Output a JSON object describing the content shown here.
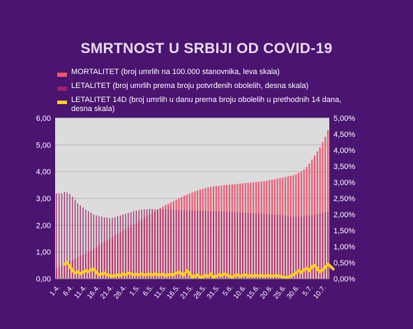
{
  "chart_data": {
    "type": "bar",
    "title": "SMRTNOST U SRBIJI OD COVID-19",
    "legend": [
      {
        "key": "mortalitet",
        "label": "MORTALITET (broj umrlih na 100.000 stanovnika, leva skala)",
        "color": "#f0556e"
      },
      {
        "key": "letalitet",
        "label": "LETALITET (broj umrlih prema broju potvrđenih obolelih, desna skala)",
        "color": "#a0226a"
      },
      {
        "key": "letalitet14",
        "label": "LETALITET 14D (broj umrlih u danu prema broju obolelih u prethodnih 14 dana, desna skala)",
        "color": "#ffd21a"
      }
    ],
    "y_left": {
      "ticks": [
        "0,00",
        "1,00",
        "2,00",
        "3,00",
        "4,00",
        "5,00",
        "6,00"
      ],
      "min": 0,
      "max": 6
    },
    "y_right": {
      "ticks": [
        "0,00%",
        "0,50%",
        "1,00%",
        "1,50%",
        "2,00%",
        "2,50%",
        "3,00%",
        "3,50%",
        "4,00%",
        "4,50%",
        "5,00%"
      ],
      "min": 0,
      "max": 5
    },
    "x_tick_labels": [
      "1.4.",
      "6.4.",
      "11.4.",
      "16.4.",
      "21.4.",
      "26.4.",
      "1.5.",
      "6.5.",
      "11.5.",
      "16.5.",
      "21.5.",
      "26.5.",
      "31.5.",
      "5.6.",
      "10.6.",
      "15.6.",
      "20.6.",
      "25.6.",
      "30.6.",
      "5.7.",
      "10.7."
    ],
    "day_count": 103,
    "series": [
      {
        "name": "MORTALITET (broj umrlih na 100.000 stanovnika, leva skala)",
        "axis": "left",
        "values": [
          0.38,
          0.43,
          0.48,
          0.55,
          0.6,
          0.65,
          0.7,
          0.75,
          0.8,
          0.85,
          0.9,
          0.95,
          1.0,
          1.06,
          1.12,
          1.18,
          1.25,
          1.31,
          1.37,
          1.43,
          1.49,
          1.55,
          1.61,
          1.67,
          1.73,
          1.79,
          1.85,
          1.91,
          1.97,
          2.03,
          2.09,
          2.15,
          2.21,
          2.27,
          2.33,
          2.39,
          2.45,
          2.51,
          2.57,
          2.63,
          2.69,
          2.75,
          2.8,
          2.85,
          2.9,
          2.95,
          3.0,
          3.05,
          3.1,
          3.14,
          3.18,
          3.22,
          3.26,
          3.3,
          3.33,
          3.36,
          3.39,
          3.41,
          3.43,
          3.45,
          3.46,
          3.47,
          3.48,
          3.49,
          3.5,
          3.51,
          3.52,
          3.53,
          3.54,
          3.55,
          3.56,
          3.57,
          3.58,
          3.59,
          3.6,
          3.61,
          3.62,
          3.63,
          3.64,
          3.66,
          3.68,
          3.7,
          3.72,
          3.74,
          3.76,
          3.78,
          3.8,
          3.82,
          3.84,
          3.86,
          3.9,
          3.95,
          4.0,
          4.08,
          4.18,
          4.3,
          4.45,
          4.6,
          4.75,
          4.9,
          5.1,
          5.3,
          5.55
        ]
      },
      {
        "name": "LETALITET (broj umrlih prema broju potvrđenih obolelih, desna skala)",
        "axis": "right",
        "values": [
          2.66,
          2.66,
          2.66,
          2.7,
          2.68,
          2.63,
          2.55,
          2.45,
          2.35,
          2.28,
          2.22,
          2.15,
          2.1,
          2.05,
          2.0,
          1.97,
          1.95,
          1.93,
          1.91,
          1.9,
          1.88,
          1.9,
          1.92,
          1.95,
          1.97,
          2.0,
          2.02,
          2.05,
          2.07,
          2.1,
          2.12,
          2.14,
          2.15,
          2.16,
          2.16,
          2.17,
          2.17,
          2.16,
          2.16,
          2.16,
          2.15,
          2.15,
          2.15,
          2.14,
          2.14,
          2.14,
          2.13,
          2.13,
          2.13,
          2.13,
          2.12,
          2.12,
          2.12,
          2.12,
          2.11,
          2.11,
          2.11,
          2.11,
          2.1,
          2.1,
          2.1,
          2.1,
          2.09,
          2.09,
          2.09,
          2.08,
          2.08,
          2.07,
          2.07,
          2.06,
          2.06,
          2.05,
          2.05,
          2.04,
          2.04,
          2.03,
          2.03,
          2.02,
          2.02,
          2.01,
          2.01,
          2.0,
          2.0,
          1.99,
          1.98,
          1.97,
          1.96,
          1.95,
          1.94,
          1.93,
          1.93,
          1.93,
          1.94,
          1.95,
          1.96,
          1.97,
          1.98,
          1.99,
          2.0,
          2.02,
          2.04,
          2.06,
          2.08
        ]
      },
      {
        "name": "LETALITET 14D (broj umrlih u danu prema broju obolelih u prethodnih 14 dana, desna skala)",
        "axis": "right",
        "values": [
          null,
          null,
          null,
          0.45,
          0.5,
          0.38,
          0.25,
          0.18,
          0.22,
          0.15,
          0.2,
          0.25,
          0.22,
          0.28,
          0.3,
          0.2,
          0.12,
          0.15,
          0.18,
          0.12,
          0.1,
          0.08,
          0.1,
          0.12,
          0.1,
          0.15,
          0.12,
          0.18,
          0.15,
          0.12,
          0.14,
          0.12,
          0.15,
          0.12,
          0.13,
          0.14,
          0.12,
          0.15,
          0.13,
          0.12,
          0.14,
          0.1,
          0.12,
          0.13,
          0.12,
          0.18,
          0.2,
          0.15,
          0.12,
          0.25,
          0.18,
          0.05,
          0.08,
          0.12,
          0.04,
          0.06,
          0.1,
          0.08,
          0.15,
          0.05,
          0.08,
          0.12,
          0.1,
          0.15,
          0.12,
          0.08,
          0.05,
          0.1,
          0.12,
          0.08,
          0.1,
          0.12,
          0.08,
          0.1,
          0.09,
          0.1,
          0.09,
          0.1,
          0.08,
          0.1,
          0.09,
          0.08,
          0.1,
          0.09,
          0.08,
          0.05,
          0.03,
          0.05,
          0.08,
          0.12,
          0.18,
          0.25,
          0.2,
          0.28,
          0.32,
          0.25,
          0.38,
          0.42,
          0.3,
          0.22,
          0.28,
          0.35,
          0.45,
          0.38,
          0.3
        ]
      }
    ],
    "grid": true
  }
}
